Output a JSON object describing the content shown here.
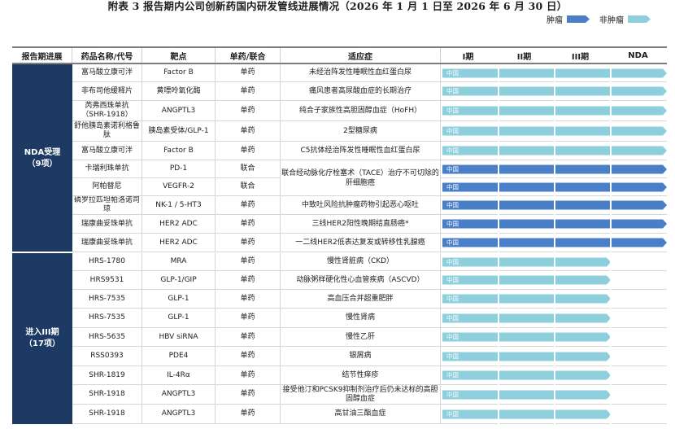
{
  "title": "附表 3 报告期内公司创新药国内研发管线进展情况（2026 年 1 月 1 日至 2026 年 6 月 30 日）",
  "legend": [
    {
      "label": "肿瘤",
      "color": "#4a7fc8"
    },
    {
      "label": "非肿瘤",
      "color": "#8ecfdd"
    }
  ],
  "headers": {
    "stage": "报告期进展",
    "name": "药品名称/代号",
    "target": "靶点",
    "type": "单药/联合",
    "indication": "适应症",
    "phases": [
      "I期",
      "II期",
      "III期",
      "NDA"
    ]
  },
  "groups": [
    {
      "label": "NDA受理",
      "count": "（9项）"
    },
    {
      "label": "进入III期",
      "count": "（17项）"
    }
  ],
  "bar_region_label": "中国",
  "rows": [
    {
      "name": "富马酸立康可泮",
      "target": "Factor B",
      "type": "单药",
      "indication": "未经治阵发性睡眠性血红蛋白尿",
      "area": "非肿瘤",
      "stage_reached": "NDA"
    },
    {
      "name": "非布司他缓释片",
      "target": "黄嘌呤氧化酶",
      "type": "单药",
      "indication": "痛风患者高尿酸血症的长期治疗",
      "area": "非肿瘤",
      "stage_reached": "NDA"
    },
    {
      "name": "芮弗西珠单抗（SHR-1918）",
      "target": "ANGPTL3",
      "type": "单药",
      "indication": "纯合子家族性高胆固醇血症（HoFH）",
      "area": "非肿瘤",
      "stage_reached": "NDA"
    },
    {
      "name": "舒他胰岛素诺利格鲁肽",
      "target": "胰岛素受体/GLP-1",
      "type": "单药",
      "indication": "2型糖尿病",
      "area": "非肿瘤",
      "stage_reached": "NDA"
    },
    {
      "name": "富马酸立康可泮",
      "target": "Factor B",
      "type": "单药",
      "indication": "C5抗体经治阵发性睡眠性血红蛋白尿",
      "area": "非肿瘤",
      "stage_reached": "NDA"
    },
    {
      "name": "卡瑞利珠单抗",
      "target": "PD-1",
      "type": "联合",
      "indication": "",
      "area": "肿瘤",
      "stage_reached": "NDA"
    },
    {
      "name": "阿帕替尼",
      "target": "VEGFR-2",
      "type": "联合",
      "indication": "",
      "area": "肿瘤",
      "stage_reached": "NDA"
    },
    {
      "name": "磷罗拉匹坦帕洛诺司琼",
      "target": "NK-1 / 5-HT3",
      "type": "单药",
      "indication": "中致吐风险抗肿瘤药物引起恶心呕吐",
      "area": "肿瘤",
      "stage_reached": "NDA"
    },
    {
      "name": "瑞康曲妥珠单抗",
      "target": "HER2 ADC",
      "type": "单药",
      "indication": "三线HER2阳性晚期结直肠癌*",
      "area": "肿瘤",
      "stage_reached": "NDA"
    },
    {
      "name": "瑞康曲妥珠单抗",
      "target": "HER2 ADC",
      "type": "单药",
      "indication": "一二线HER2低表达复发或转移性乳腺癌",
      "area": "肿瘤",
      "stage_reached": "NDA"
    },
    {
      "name": "HRS-1780",
      "target": "MRA",
      "type": "单药",
      "indication": "慢性肾脏病（CKD）",
      "area": "非肿瘤",
      "stage_reached": "III期"
    },
    {
      "name": "HRS9531",
      "target": "GLP-1/GIP",
      "type": "单药",
      "indication": "动脉粥样硬化性心血管疾病（ASCVD）",
      "area": "非肿瘤",
      "stage_reached": "III期"
    },
    {
      "name": "HRS-7535",
      "target": "GLP-1",
      "type": "单药",
      "indication": "高血压合并超重肥胖",
      "area": "非肿瘤",
      "stage_reached": "III期"
    },
    {
      "name": "HRS-7535",
      "target": "GLP-1",
      "type": "单药",
      "indication": "慢性肾病",
      "area": "非肿瘤",
      "stage_reached": "III期"
    },
    {
      "name": "HRS-5635",
      "target": "HBV siRNA",
      "type": "单药",
      "indication": "慢性乙肝",
      "area": "非肿瘤",
      "stage_reached": "III期"
    },
    {
      "name": "RSS0393",
      "target": "PDE4",
      "type": "单药",
      "indication": "银屑病",
      "area": "非肿瘤",
      "stage_reached": "III期"
    },
    {
      "name": "SHR-1819",
      "target": "IL-4Rα",
      "type": "单药",
      "indication": "结节性痒疹",
      "area": "非肿瘤",
      "stage_reached": "III期"
    },
    {
      "name": "SHR-1918",
      "target": "ANGPTL3",
      "type": "单药",
      "indication": "接受他汀和PCSK9抑制剂治疗后仍未达标的高胆固醇血症",
      "area": "非肿瘤",
      "stage_reached": "III期"
    },
    {
      "name": "SHR-1918",
      "target": "ANGPTL3",
      "type": "单药",
      "indication": "高甘油三酯血症",
      "area": "非肿瘤",
      "stage_reached": "III期"
    }
  ],
  "merged_indication": "联合经动脉化疗栓塞术（TACE）治疗不可切除的肝细胞癌"
}
